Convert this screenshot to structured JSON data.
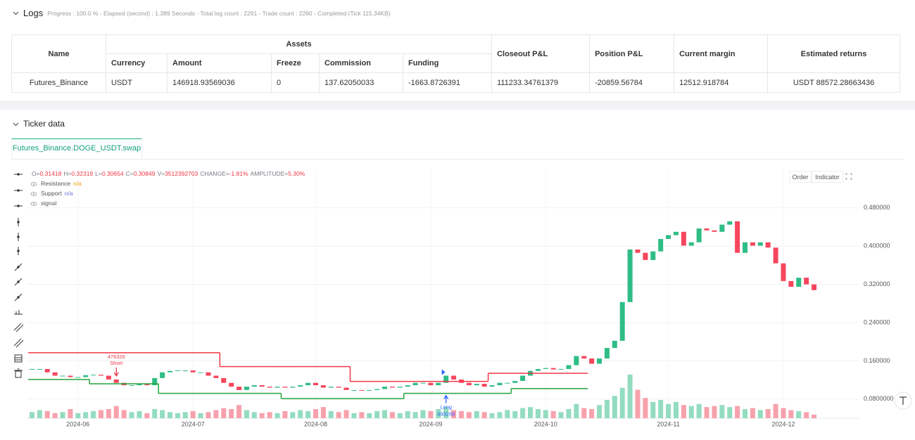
{
  "header": {
    "title": "Logs",
    "progress": "Progress : 100.0 % - Elapsed (second) : 1.389 Seconds - Total log count : 2291 - Trade count : 2260 - Completed (Tick 115.34KB)"
  },
  "table": {
    "header_top": [
      "Name",
      "Assets",
      "Closeout P&L",
      "Position P&L",
      "Current margin",
      "Estimated returns"
    ],
    "header_sub": [
      "Currency",
      "Amount",
      "Freeze",
      "Commission",
      "Funding"
    ],
    "rows": [
      [
        "Futures_Binance",
        "USDT",
        "146918.93569036",
        "0",
        "137.62050033",
        "-1663.8726391",
        "111233.34761379",
        "-20859.56784",
        "12512.918784",
        "USDT 88572.28663436"
      ]
    ]
  },
  "ticker": {
    "title": "Ticker data",
    "tab": "Futures_Binance.DOGE_USDT.swap",
    "buttons": [
      "Order",
      "Indicator"
    ]
  },
  "chart_data": {
    "type": "candlestick",
    "ohlc_line": [
      {
        "label": "O=",
        "value": "0.31418"
      },
      {
        "label": "H=",
        "value": "0.32319"
      },
      {
        "label": "L=",
        "value": "0.30654"
      },
      {
        "label": "C=",
        "value": "0.30849"
      },
      {
        "label": "V=",
        "value": "3512392703"
      },
      {
        "label": "CHANGE=",
        "value": "-1.81%"
      },
      {
        "label": "AMPLITUDE=",
        "value": "5.30%"
      }
    ],
    "ohlc_value_color": "#f23645",
    "signal_name": "signal",
    "categories": [
      null,
      null,
      null,
      null,
      null,
      null,
      "2024-06",
      null,
      null,
      null,
      null,
      null,
      null,
      null,
      null,
      null,
      null,
      null,
      null,
      null,
      null,
      "2024-07",
      null,
      null,
      null,
      null,
      null,
      null,
      null,
      null,
      null,
      null,
      null,
      null,
      null,
      null,
      null,
      "2024-08",
      null,
      null,
      null,
      null,
      null,
      null,
      null,
      null,
      null,
      null,
      null,
      null,
      null,
      null,
      "2024-09",
      null,
      null,
      null,
      null,
      null,
      null,
      null,
      null,
      null,
      null,
      null,
      null,
      null,
      null,
      "2024-10",
      null,
      null,
      null,
      null,
      null,
      null,
      null,
      null,
      null,
      null,
      null,
      null,
      null,
      null,
      null,
      "2024-11",
      null,
      null,
      null,
      null,
      null,
      null,
      null,
      null,
      null,
      null,
      null,
      null,
      null,
      null,
      "2024-12",
      null,
      null,
      null,
      null
    ],
    "close": [
      0.143,
      0.143,
      0.136,
      0.129,
      0.129,
      0.126,
      0.126,
      0.13,
      0.131,
      0.129,
      0.121,
      0.114,
      0.109,
      0.109,
      0.112,
      0.109,
      0.124,
      0.136,
      0.139,
      0.14,
      0.14,
      0.136,
      0.136,
      0.129,
      0.124,
      0.114,
      0.106,
      0.099,
      0.106,
      0.109,
      0.106,
      0.104,
      0.106,
      0.104,
      0.106,
      0.109,
      0.114,
      0.109,
      0.104,
      0.106,
      0.104,
      0.099,
      0.099,
      0.098,
      0.099,
      0.101,
      0.106,
      0.104,
      0.106,
      0.109,
      0.114,
      0.114,
      0.109,
      0.114,
      0.129,
      0.121,
      0.114,
      0.109,
      0.112,
      0.106,
      0.109,
      0.114,
      0.114,
      0.118,
      0.129,
      0.139,
      0.143,
      0.145,
      0.142,
      0.143,
      0.151,
      0.17,
      0.165,
      0.154,
      0.165,
      0.187,
      0.202,
      0.283,
      0.393,
      0.386,
      0.371,
      0.389,
      0.415,
      0.423,
      0.43,
      0.401,
      0.408,
      0.437,
      0.433,
      0.43,
      0.445,
      0.452,
      0.386,
      0.408,
      0.401,
      0.408,
      0.397,
      0.364,
      0.327,
      0.315,
      0.334,
      0.32,
      0.308
    ],
    "volume": [
      6000000000.0,
      8000000000.0,
      7000000000.0,
      5000000000.0,
      6000000000.0,
      9000000000.0,
      5000000000.0,
      6000000000.0,
      7000000000.0,
      8000000000.0,
      9000000000.0,
      12000000000.0,
      8000000000.0,
      6000000000.0,
      7000000000.0,
      5000000000.0,
      9000000000.0,
      8000000000.0,
      6000000000.0,
      5000000000.0,
      6000000000.0,
      7000000000.0,
      5000000000.0,
      6000000000.0,
      8000000000.0,
      10000000000.0,
      9000000000.0,
      13000000000.0,
      8000000000.0,
      6000000000.0,
      5000000000.0,
      6000000000.0,
      5000000000.0,
      7000000000.0,
      6000000000.0,
      8000000000.0,
      7000000000.0,
      9000000000.0,
      11000000000.0,
      7000000000.0,
      6000000000.0,
      8000000000.0,
      5000000000.0,
      6000000000.0,
      5000000000.0,
      7000000000.0,
      8000000000.0,
      6000000000.0,
      5000000000.0,
      7000000000.0,
      6000000000.0,
      8000000000.0,
      7000000000.0,
      9000000000.0,
      11000000000.0,
      8000000000.0,
      7000000000.0,
      6000000000.0,
      7000000000.0,
      6000000000.0,
      5000000000.0,
      6000000000.0,
      8000000000.0,
      7000000000.0,
      10000000000.0,
      11000000000.0,
      9000000000.0,
      8000000000.0,
      7000000000.0,
      6000000000.0,
      9000000000.0,
      14000000000.0,
      10000000000.0,
      9000000000.0,
      13000000000.0,
      18000000000.0,
      22000000000.0,
      30000000000.0,
      43000000000.0,
      28000000000.0,
      20000000000.0,
      16000000000.0,
      18000000000.0,
      14000000000.0,
      16000000000.0,
      13000000000.0,
      12000000000.0,
      14000000000.0,
      11000000000.0,
      12000000000.0,
      13000000000.0,
      11000000000.0,
      12000000000.0,
      9000000000.0,
      10000000000.0,
      8000000000.0,
      9000000000.0,
      14000000000.0,
      10000000000.0,
      8000000000.0,
      7000000000.0,
      6000000000.0,
      3500000000.0
    ],
    "up_color": "#2ebd85",
    "down_color": "#f6465d",
    "volume_up_color": "#93dcc0",
    "volume_down_color": "#f7a1ad",
    "series": [
      {
        "name": "Resistance",
        "status": "n/a",
        "status_color": "#f0a000",
        "color": "#f23645",
        "values": [
          0.177,
          0.177,
          0.177,
          0.177,
          0.177,
          0.177,
          0.177,
          0.177,
          0.177,
          0.177,
          0.177,
          0.177,
          0.177,
          0.177,
          0.177,
          0.177,
          0.177,
          0.177,
          0.177,
          0.177,
          0.177,
          0.177,
          0.177,
          0.177,
          0.177,
          0.148,
          0.148,
          0.148,
          0.148,
          0.148,
          0.148,
          0.148,
          0.148,
          0.148,
          0.148,
          0.148,
          0.148,
          0.148,
          0.148,
          0.148,
          0.148,
          0.148,
          0.117,
          0.117,
          0.117,
          0.117,
          0.117,
          0.117,
          0.117,
          0.117,
          0.117,
          0.117,
          0.117,
          0.117,
          0.117,
          0.117,
          0.117,
          0.117,
          0.117,
          0.117,
          0.134,
          0.134,
          0.134,
          0.134,
          0.134,
          0.134,
          0.134,
          0.134,
          0.134,
          0.134,
          0.134,
          0.134,
          0.134,
          null,
          null,
          null,
          null,
          null,
          null,
          null,
          null,
          null,
          null,
          null,
          null,
          null,
          null,
          null,
          null,
          null,
          null,
          null,
          null,
          null,
          null,
          null,
          null,
          null,
          null,
          null,
          null,
          null,
          null
        ]
      },
      {
        "name": "Support",
        "status": "n/a",
        "status_color": "#6d6fd8",
        "color": "#22a33a",
        "values": [
          0.121,
          0.121,
          0.121,
          0.121,
          0.121,
          0.121,
          0.121,
          0.121,
          0.112,
          0.112,
          0.112,
          0.112,
          0.112,
          0.112,
          0.112,
          0.112,
          0.112,
          0.092,
          0.092,
          0.092,
          0.092,
          0.092,
          0.092,
          0.092,
          0.092,
          0.092,
          0.092,
          0.092,
          0.092,
          0.092,
          0.092,
          0.092,
          0.092,
          0.081,
          0.081,
          0.081,
          0.081,
          0.081,
          0.081,
          0.081,
          0.081,
          0.081,
          0.081,
          0.081,
          0.081,
          0.081,
          0.081,
          0.081,
          0.081,
          0.092,
          0.092,
          0.092,
          0.092,
          0.092,
          0.092,
          0.092,
          0.092,
          0.092,
          0.092,
          0.092,
          0.092,
          0.092,
          0.092,
          0.102,
          0.102,
          0.102,
          0.102,
          0.102,
          0.102,
          0.102,
          0.102,
          0.102,
          0.102,
          null,
          null,
          null,
          null,
          null,
          null,
          null,
          null,
          null,
          null,
          null,
          null,
          null,
          null,
          null,
          null,
          null,
          null,
          null,
          null,
          null,
          null,
          null,
          null,
          null,
          null,
          null,
          null,
          null,
          null
        ]
      }
    ],
    "signals": [
      {
        "label": "Short",
        "amount": 476326,
        "category": 11,
        "color": "#f23645"
      },
      {
        "label": "Long",
        "amount": 493269,
        "category": 54,
        "color": "#2962ff"
      }
    ],
    "ylim": [
      0.04,
      0.56
    ],
    "vlim": [
      0,
      45000000000.0
    ],
    "yticks": [
      {
        "value": 0.08,
        "label": "0.0800000"
      },
      {
        "value": 0.16,
        "label": "0.160000"
      },
      {
        "value": 0.24,
        "label": "0.240000"
      },
      {
        "value": 0.32,
        "label": "0.320000"
      },
      {
        "value": 0.4,
        "label": "0.400000"
      },
      {
        "value": 0.48,
        "label": "0.480000"
      }
    ],
    "grid": true
  }
}
